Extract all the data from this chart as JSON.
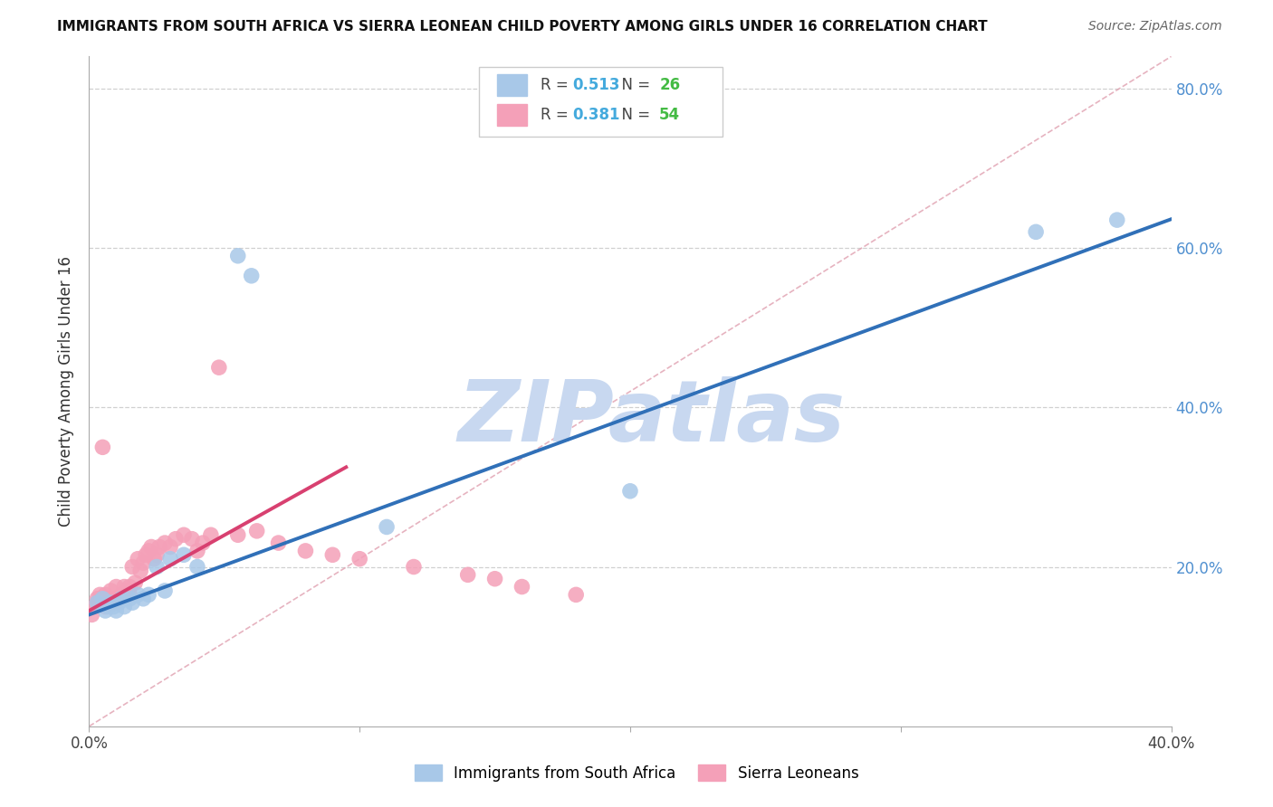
{
  "title": "IMMIGRANTS FROM SOUTH AFRICA VS SIERRA LEONEAN CHILD POVERTY AMONG GIRLS UNDER 16 CORRELATION CHART",
  "source": "Source: ZipAtlas.com",
  "ylabel": "Child Poverty Among Girls Under 16",
  "xlim": [
    0.0,
    0.4
  ],
  "ylim": [
    0.0,
    0.84
  ],
  "blue_r": 0.513,
  "blue_n": 26,
  "pink_r": 0.381,
  "pink_n": 54,
  "blue_color": "#a8c8e8",
  "pink_color": "#f4a0b8",
  "blue_line_color": "#3070b8",
  "pink_line_color": "#d84070",
  "diag_color": "#e0a0b0",
  "watermark_color": "#c8d8f0",
  "grid_color": "#d0d0d0",
  "right_tick_color": "#5090d0",
  "background_color": "#ffffff",
  "blue_legend_label": "Immigrants from South Africa",
  "pink_legend_label": "Sierra Leoneans",
  "blue_points_x": [
    0.003,
    0.005,
    0.006,
    0.007,
    0.008,
    0.009,
    0.01,
    0.011,
    0.012,
    0.013,
    0.015,
    0.016,
    0.018,
    0.02,
    0.022,
    0.025,
    0.028,
    0.03,
    0.035,
    0.04,
    0.055,
    0.06,
    0.11,
    0.2,
    0.35,
    0.38
  ],
  "blue_points_y": [
    0.155,
    0.16,
    0.145,
    0.15,
    0.155,
    0.15,
    0.145,
    0.155,
    0.16,
    0.15,
    0.16,
    0.155,
    0.165,
    0.16,
    0.165,
    0.2,
    0.17,
    0.21,
    0.215,
    0.2,
    0.59,
    0.565,
    0.25,
    0.295,
    0.62,
    0.635
  ],
  "pink_points_x": [
    0.001,
    0.002,
    0.003,
    0.003,
    0.004,
    0.004,
    0.005,
    0.005,
    0.006,
    0.006,
    0.007,
    0.007,
    0.008,
    0.008,
    0.009,
    0.01,
    0.01,
    0.011,
    0.012,
    0.013,
    0.014,
    0.015,
    0.015,
    0.016,
    0.017,
    0.018,
    0.019,
    0.02,
    0.021,
    0.022,
    0.023,
    0.024,
    0.025,
    0.026,
    0.028,
    0.03,
    0.032,
    0.035,
    0.038,
    0.04,
    0.042,
    0.045,
    0.048,
    0.055,
    0.062,
    0.07,
    0.08,
    0.09,
    0.1,
    0.12,
    0.14,
    0.15,
    0.16,
    0.18
  ],
  "pink_points_y": [
    0.14,
    0.15,
    0.155,
    0.16,
    0.155,
    0.165,
    0.35,
    0.16,
    0.15,
    0.165,
    0.155,
    0.16,
    0.17,
    0.155,
    0.16,
    0.155,
    0.175,
    0.16,
    0.165,
    0.175,
    0.17,
    0.165,
    0.175,
    0.2,
    0.18,
    0.21,
    0.195,
    0.205,
    0.215,
    0.22,
    0.225,
    0.21,
    0.215,
    0.225,
    0.23,
    0.225,
    0.235,
    0.24,
    0.235,
    0.22,
    0.23,
    0.24,
    0.45,
    0.24,
    0.245,
    0.23,
    0.22,
    0.215,
    0.21,
    0.2,
    0.19,
    0.185,
    0.175,
    0.165
  ],
  "blue_line_x": [
    0.0,
    0.4
  ],
  "blue_line_y": [
    0.14,
    0.636
  ],
  "pink_line_x": [
    0.0,
    0.095
  ],
  "pink_line_y": [
    0.145,
    0.325
  ],
  "diag_line_x": [
    0.0,
    0.4
  ],
  "diag_line_y": [
    0.0,
    0.84
  ]
}
